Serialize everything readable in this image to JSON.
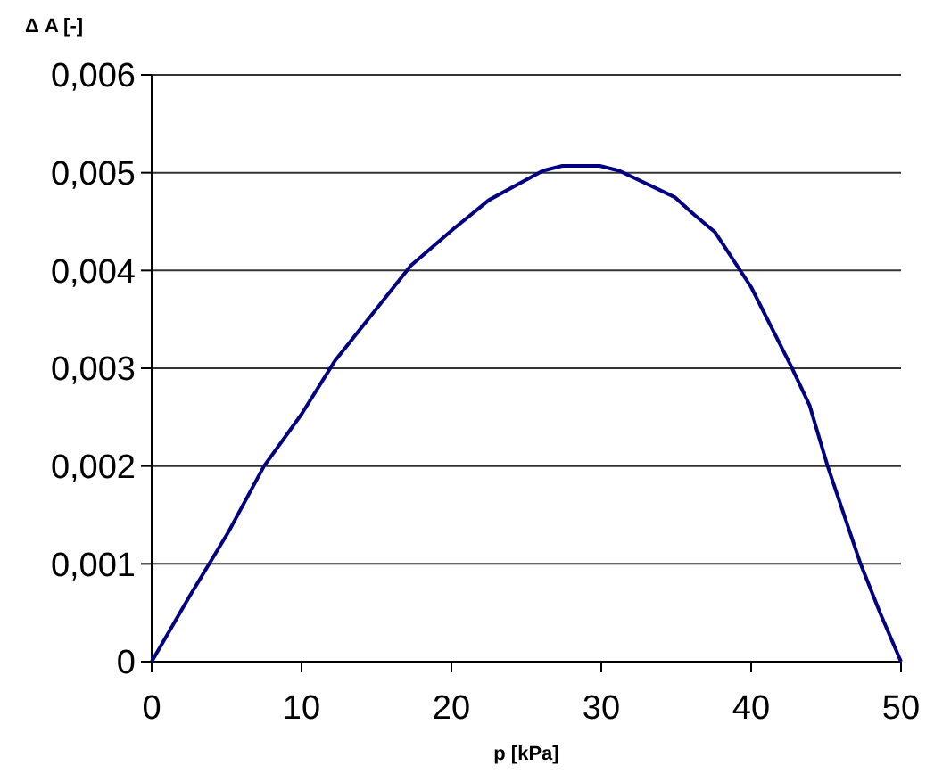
{
  "chart_data": {
    "type": "line",
    "xlabel": "p [kPa]",
    "ylabel": "Δ A [-]",
    "x": [
      0,
      2.5,
      5.1,
      7.5,
      10,
      12.2,
      14.8,
      17.3,
      20.1,
      22.5,
      26.1,
      27.4,
      29.9,
      31.2,
      34.9,
      36.2,
      37.6,
      40,
      42.7,
      43.9,
      45.1,
      47.3,
      48.6,
      50
    ],
    "series": [
      {
        "color": "#000080",
        "values": [
          0,
          0.00066,
          0.00132,
          0.002,
          0.00253,
          0.00307,
          0.00357,
          0.00405,
          0.00442,
          0.00472,
          0.00502,
          0.00507,
          0.00507,
          0.00502,
          0.00475,
          0.00457,
          0.00439,
          0.00383,
          0.00301,
          0.00262,
          0.002,
          0.001,
          0.0005,
          0
        ]
      }
    ],
    "xlim": [
      0,
      50
    ],
    "xticks": [
      0,
      10,
      20,
      30,
      40,
      50
    ],
    "ylim": [
      0,
      0.006
    ],
    "yticks": [
      0,
      {
        "value": 0.001,
        "label": "0,001"
      },
      {
        "value": 0.002,
        "label": "0,002"
      },
      {
        "value": 0.003,
        "label": "0,003"
      },
      {
        "value": 0.004,
        "label": "0,004"
      },
      {
        "value": 0.005,
        "label": "0,005"
      },
      {
        "value": 0.006,
        "label": "0,006"
      }
    ],
    "grid": "y",
    "marker": "none",
    "line_style": "solid"
  }
}
